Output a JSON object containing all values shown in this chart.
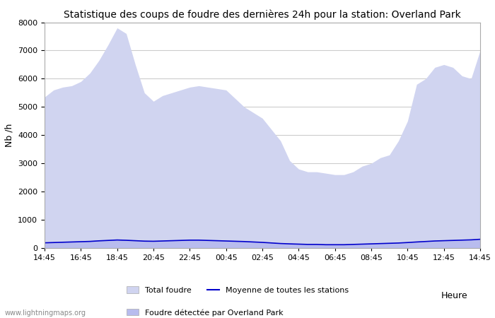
{
  "title": "Statistique des coups de foudre des dernières 24h pour la station: Overland Park",
  "xlabel": "Heure",
  "ylabel": "Nb /h",
  "ylim": [
    0,
    8000
  ],
  "yticks": [
    0,
    1000,
    2000,
    3000,
    4000,
    5000,
    6000,
    7000,
    8000
  ],
  "x_labels": [
    "14:45",
    "16:45",
    "18:45",
    "20:45",
    "22:45",
    "00:45",
    "02:45",
    "04:45",
    "06:45",
    "08:45",
    "10:45",
    "12:45",
    "14:45"
  ],
  "bg_color": "#ffffff",
  "plot_bg_color": "#ffffff",
  "grid_color": "#cccccc",
  "fill_total_color": "#d0d4f0",
  "fill_local_color": "#b8bcee",
  "line_mean_color": "#0000cc",
  "watermark": "www.lightningmaps.org",
  "legend_total": "Total foudre",
  "legend_mean": "Moyenne de toutes les stations",
  "legend_local": "Foudre détectée par Overland Park",
  "total_foudre": [
    5350,
    5600,
    5700,
    5750,
    5900,
    6200,
    6650,
    7200,
    7800,
    7600,
    6500,
    5500,
    5200,
    5400,
    5500,
    5600,
    5700,
    5750,
    5700,
    5650,
    5600,
    5300,
    5000,
    4800,
    4600,
    4200,
    3800,
    3100,
    2800,
    2700,
    2700,
    2650,
    2600,
    2600,
    2700,
    2900,
    3000,
    3200,
    3300,
    3800,
    4500,
    5800,
    6000,
    6400,
    6500,
    6400,
    6100,
    6000,
    7000
  ],
  "local_foudre": [
    180,
    200,
    210,
    220,
    240,
    260,
    280,
    290,
    300,
    280,
    260,
    240,
    230,
    250,
    260,
    280,
    290,
    290,
    270,
    260,
    250,
    240,
    230,
    210,
    190,
    170,
    150,
    140,
    130,
    120,
    120,
    110,
    110,
    110,
    120,
    130,
    140,
    150,
    160,
    170,
    190,
    210,
    220,
    240,
    250,
    260,
    270,
    280,
    300
  ],
  "mean_line": [
    185,
    195,
    205,
    215,
    225,
    235,
    255,
    270,
    285,
    275,
    260,
    245,
    240,
    250,
    260,
    270,
    280,
    280,
    270,
    260,
    250,
    240,
    230,
    215,
    200,
    180,
    160,
    148,
    138,
    128,
    128,
    118,
    118,
    118,
    128,
    138,
    148,
    158,
    168,
    178,
    195,
    215,
    232,
    250,
    260,
    270,
    280,
    290,
    310
  ]
}
